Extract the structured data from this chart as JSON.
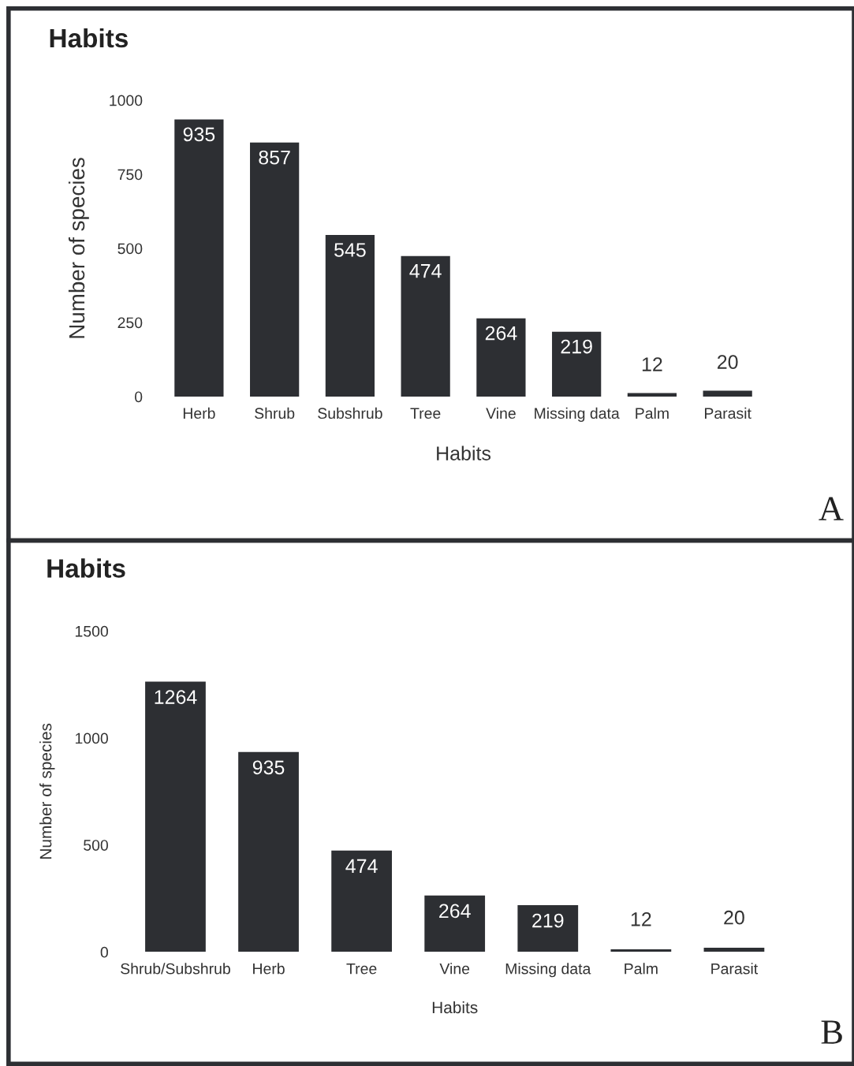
{
  "chart_data": [
    {
      "type": "bar",
      "title": "Habits",
      "xlabel": "Habits",
      "ylabel": "Number of species",
      "categories": [
        "Herb",
        "Shrub",
        "Subshrub",
        "Tree",
        "Vine",
        "Missing data",
        "Palm",
        "Parasit"
      ],
      "values": [
        935,
        857,
        545,
        474,
        264,
        219,
        12,
        20
      ],
      "color": "#2d2f33",
      "ylim": [
        0,
        1000
      ],
      "yticks": [
        0,
        250,
        500,
        750,
        1000
      ],
      "grid": false,
      "data_labels": true,
      "annotations": [
        "A"
      ]
    },
    {
      "type": "bar",
      "title": "Habits",
      "xlabel": "Habits",
      "ylabel": "Number of species",
      "categories": [
        "Shrub/Subshrub",
        "Herb",
        "Tree",
        "Vine",
        "Missing data",
        "Palm",
        "Parasit"
      ],
      "values": [
        1264,
        935,
        474,
        264,
        219,
        12,
        20
      ],
      "color": "#2d2f33",
      "ylim": [
        0,
        1500
      ],
      "yticks": [
        0,
        500,
        1000,
        1500
      ],
      "grid": false,
      "data_labels": true,
      "annotations": [
        "B"
      ]
    }
  ]
}
